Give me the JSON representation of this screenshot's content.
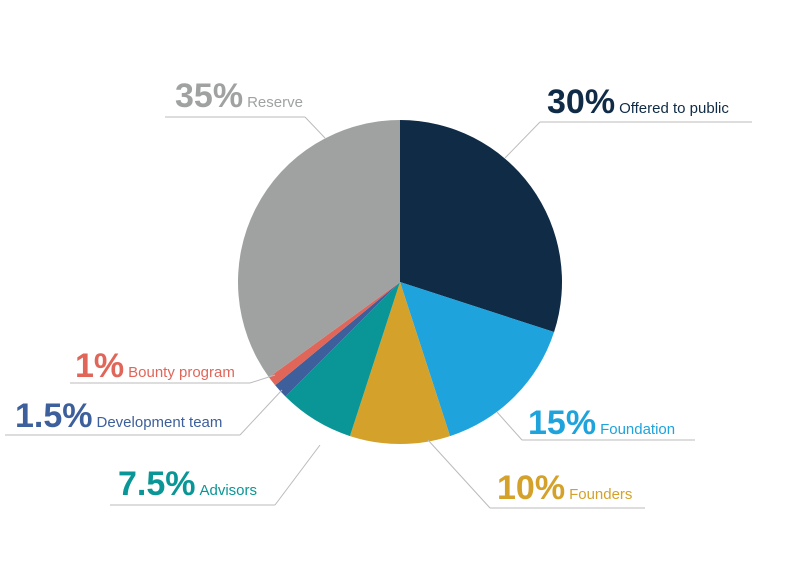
{
  "chart_data": {
    "type": "pie",
    "categories": [
      "Offered to public",
      "Foundation",
      "Founders",
      "Advisors",
      "Development team",
      "Bounty program",
      "Reserve"
    ],
    "values": [
      30,
      15,
      10,
      7.5,
      1.5,
      1,
      35
    ],
    "value_labels": [
      "30%",
      "15%",
      "10%",
      "7.5%",
      "1.5%",
      "1%",
      "35%"
    ],
    "colors": [
      "#0f2b46",
      "#1fa3dc",
      "#d4a22a",
      "#0a9696",
      "#3d5f9c",
      "#e0665a",
      "#a0a2a2"
    ]
  }
}
